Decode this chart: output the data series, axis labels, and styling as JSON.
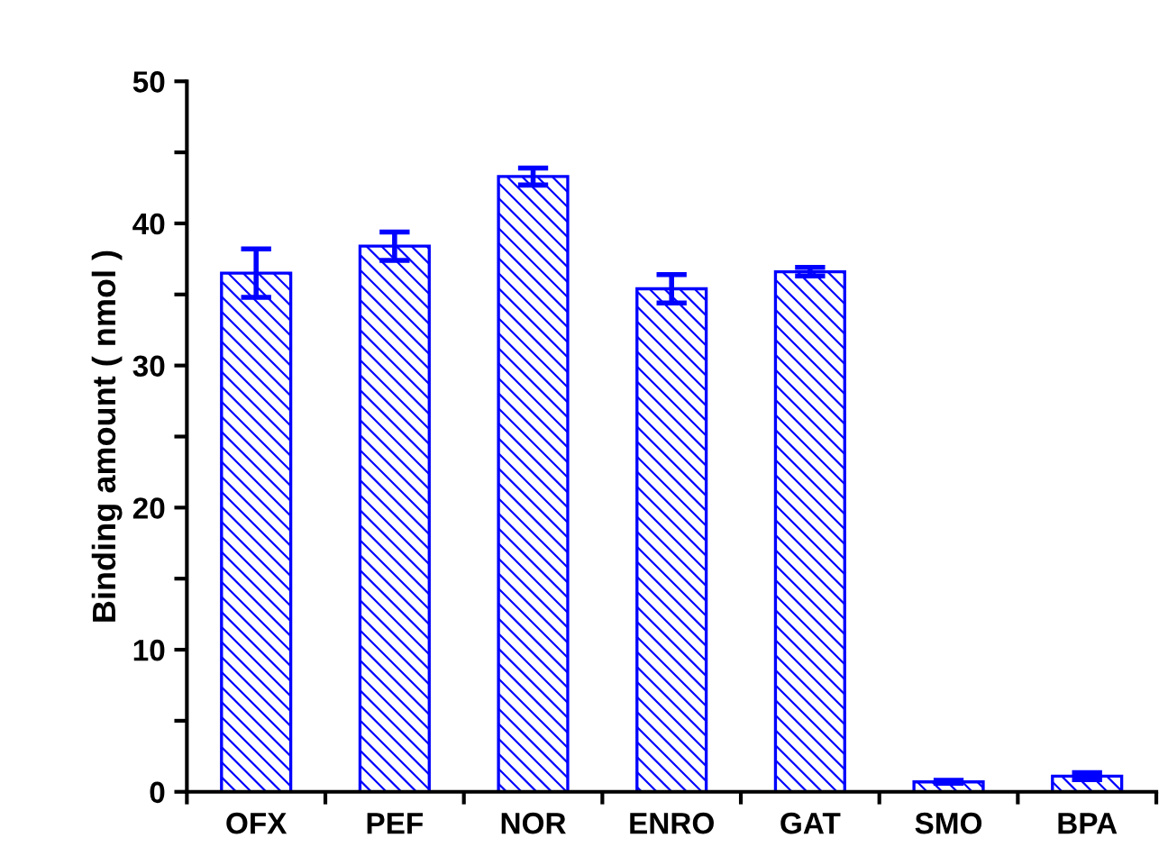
{
  "chart_data": {
    "type": "bar",
    "ylabel": "Binding amount ( nmol )",
    "categories": [
      "OFX",
      "PEF",
      "NOR",
      "ENRO",
      "GAT",
      "SMO",
      "BPA"
    ],
    "values": [
      36.5,
      38.4,
      43.3,
      35.4,
      36.6,
      0.7,
      1.1
    ],
    "errors": [
      1.7,
      1.0,
      0.6,
      1.0,
      0.3,
      0.1,
      0.25
    ],
    "color": "#0000ff",
    "ylim": [
      0,
      50
    ],
    "yticks": [
      0,
      {
        "value": 5,
        "label": null
      },
      10,
      {
        "value": 15,
        "label": null
      },
      20,
      {
        "value": 25,
        "label": null
      },
      30,
      {
        "value": 35,
        "label": null
      },
      40,
      {
        "value": 45,
        "label": null
      },
      50
    ],
    "grid": false
  }
}
